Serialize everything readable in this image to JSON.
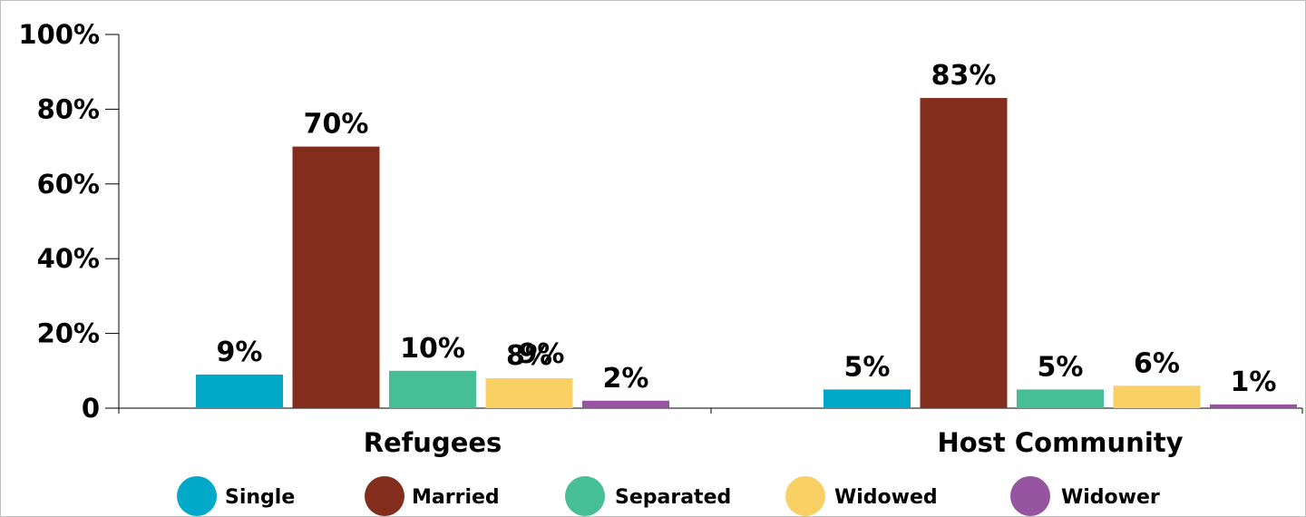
{
  "chart_data": {
    "type": "bar",
    "categories": [
      "Refugees",
      "Host Community"
    ],
    "series": [
      {
        "name": "Single",
        "values": [
          9,
          5
        ],
        "labels": [
          "9%",
          "5%"
        ],
        "color": "#00A9C8"
      },
      {
        "name": "Married",
        "values": [
          70,
          83
        ],
        "labels": [
          "70%",
          "83%"
        ],
        "color": "#832E1D"
      },
      {
        "name": "Separated",
        "values": [
          10,
          5
        ],
        "labels": [
          "10%",
          "5%"
        ],
        "color": "#47BF96"
      },
      {
        "name": "Widowed",
        "values": [
          8,
          6
        ],
        "labels": [
          "8%",
          "6%"
        ],
        "color": "#F8D064"
      },
      {
        "name": "Widower",
        "values": [
          2,
          1
        ],
        "labels": [
          "2%",
          "1%"
        ],
        "color": "#9653A0"
      }
    ],
    "extra_labels": [
      "9%"
    ],
    "yticks": [
      "0",
      "20%",
      "40%",
      "60%",
      "80%",
      "100%"
    ],
    "ytick_values": [
      0,
      20,
      40,
      60,
      80,
      100
    ],
    "ylim": [
      0,
      100
    ],
    "grid": false,
    "legend": "bottom"
  }
}
